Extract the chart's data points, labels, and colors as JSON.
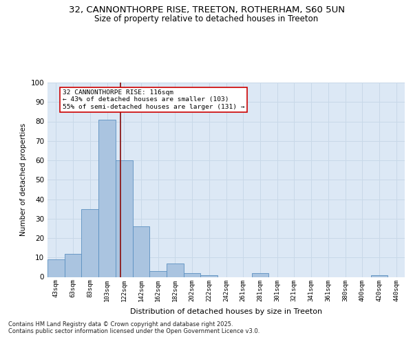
{
  "title_line1": "32, CANNONTHORPE RISE, TREETON, ROTHERHAM, S60 5UN",
  "title_line2": "Size of property relative to detached houses in Treeton",
  "xlabel": "Distribution of detached houses by size in Treeton",
  "ylabel": "Number of detached properties",
  "footer_line1": "Contains HM Land Registry data © Crown copyright and database right 2025.",
  "footer_line2": "Contains public sector information licensed under the Open Government Licence v3.0.",
  "bins": [
    "43sqm",
    "63sqm",
    "83sqm",
    "103sqm",
    "122sqm",
    "142sqm",
    "162sqm",
    "182sqm",
    "202sqm",
    "222sqm",
    "242sqm",
    "261sqm",
    "281sqm",
    "301sqm",
    "321sqm",
    "341sqm",
    "361sqm",
    "380sqm",
    "400sqm",
    "420sqm",
    "440sqm"
  ],
  "bar_heights": [
    9,
    12,
    35,
    81,
    60,
    26,
    3,
    7,
    2,
    1,
    0,
    0,
    2,
    0,
    0,
    0,
    0,
    0,
    0,
    1,
    0
  ],
  "bar_color": "#aac4e0",
  "bar_edge_color": "#5a8fc0",
  "grid_color": "#c8d8e8",
  "bg_color": "#dce8f5",
  "vline_x": 3.77,
  "vline_color": "#8b1a1a",
  "annotation_text": "32 CANNONTHORPE RISE: 116sqm\n← 43% of detached houses are smaller (103)\n55% of semi-detached houses are larger (131) →",
  "ylim": [
    0,
    100
  ],
  "yticks": [
    0,
    10,
    20,
    30,
    40,
    50,
    60,
    70,
    80,
    90,
    100
  ]
}
